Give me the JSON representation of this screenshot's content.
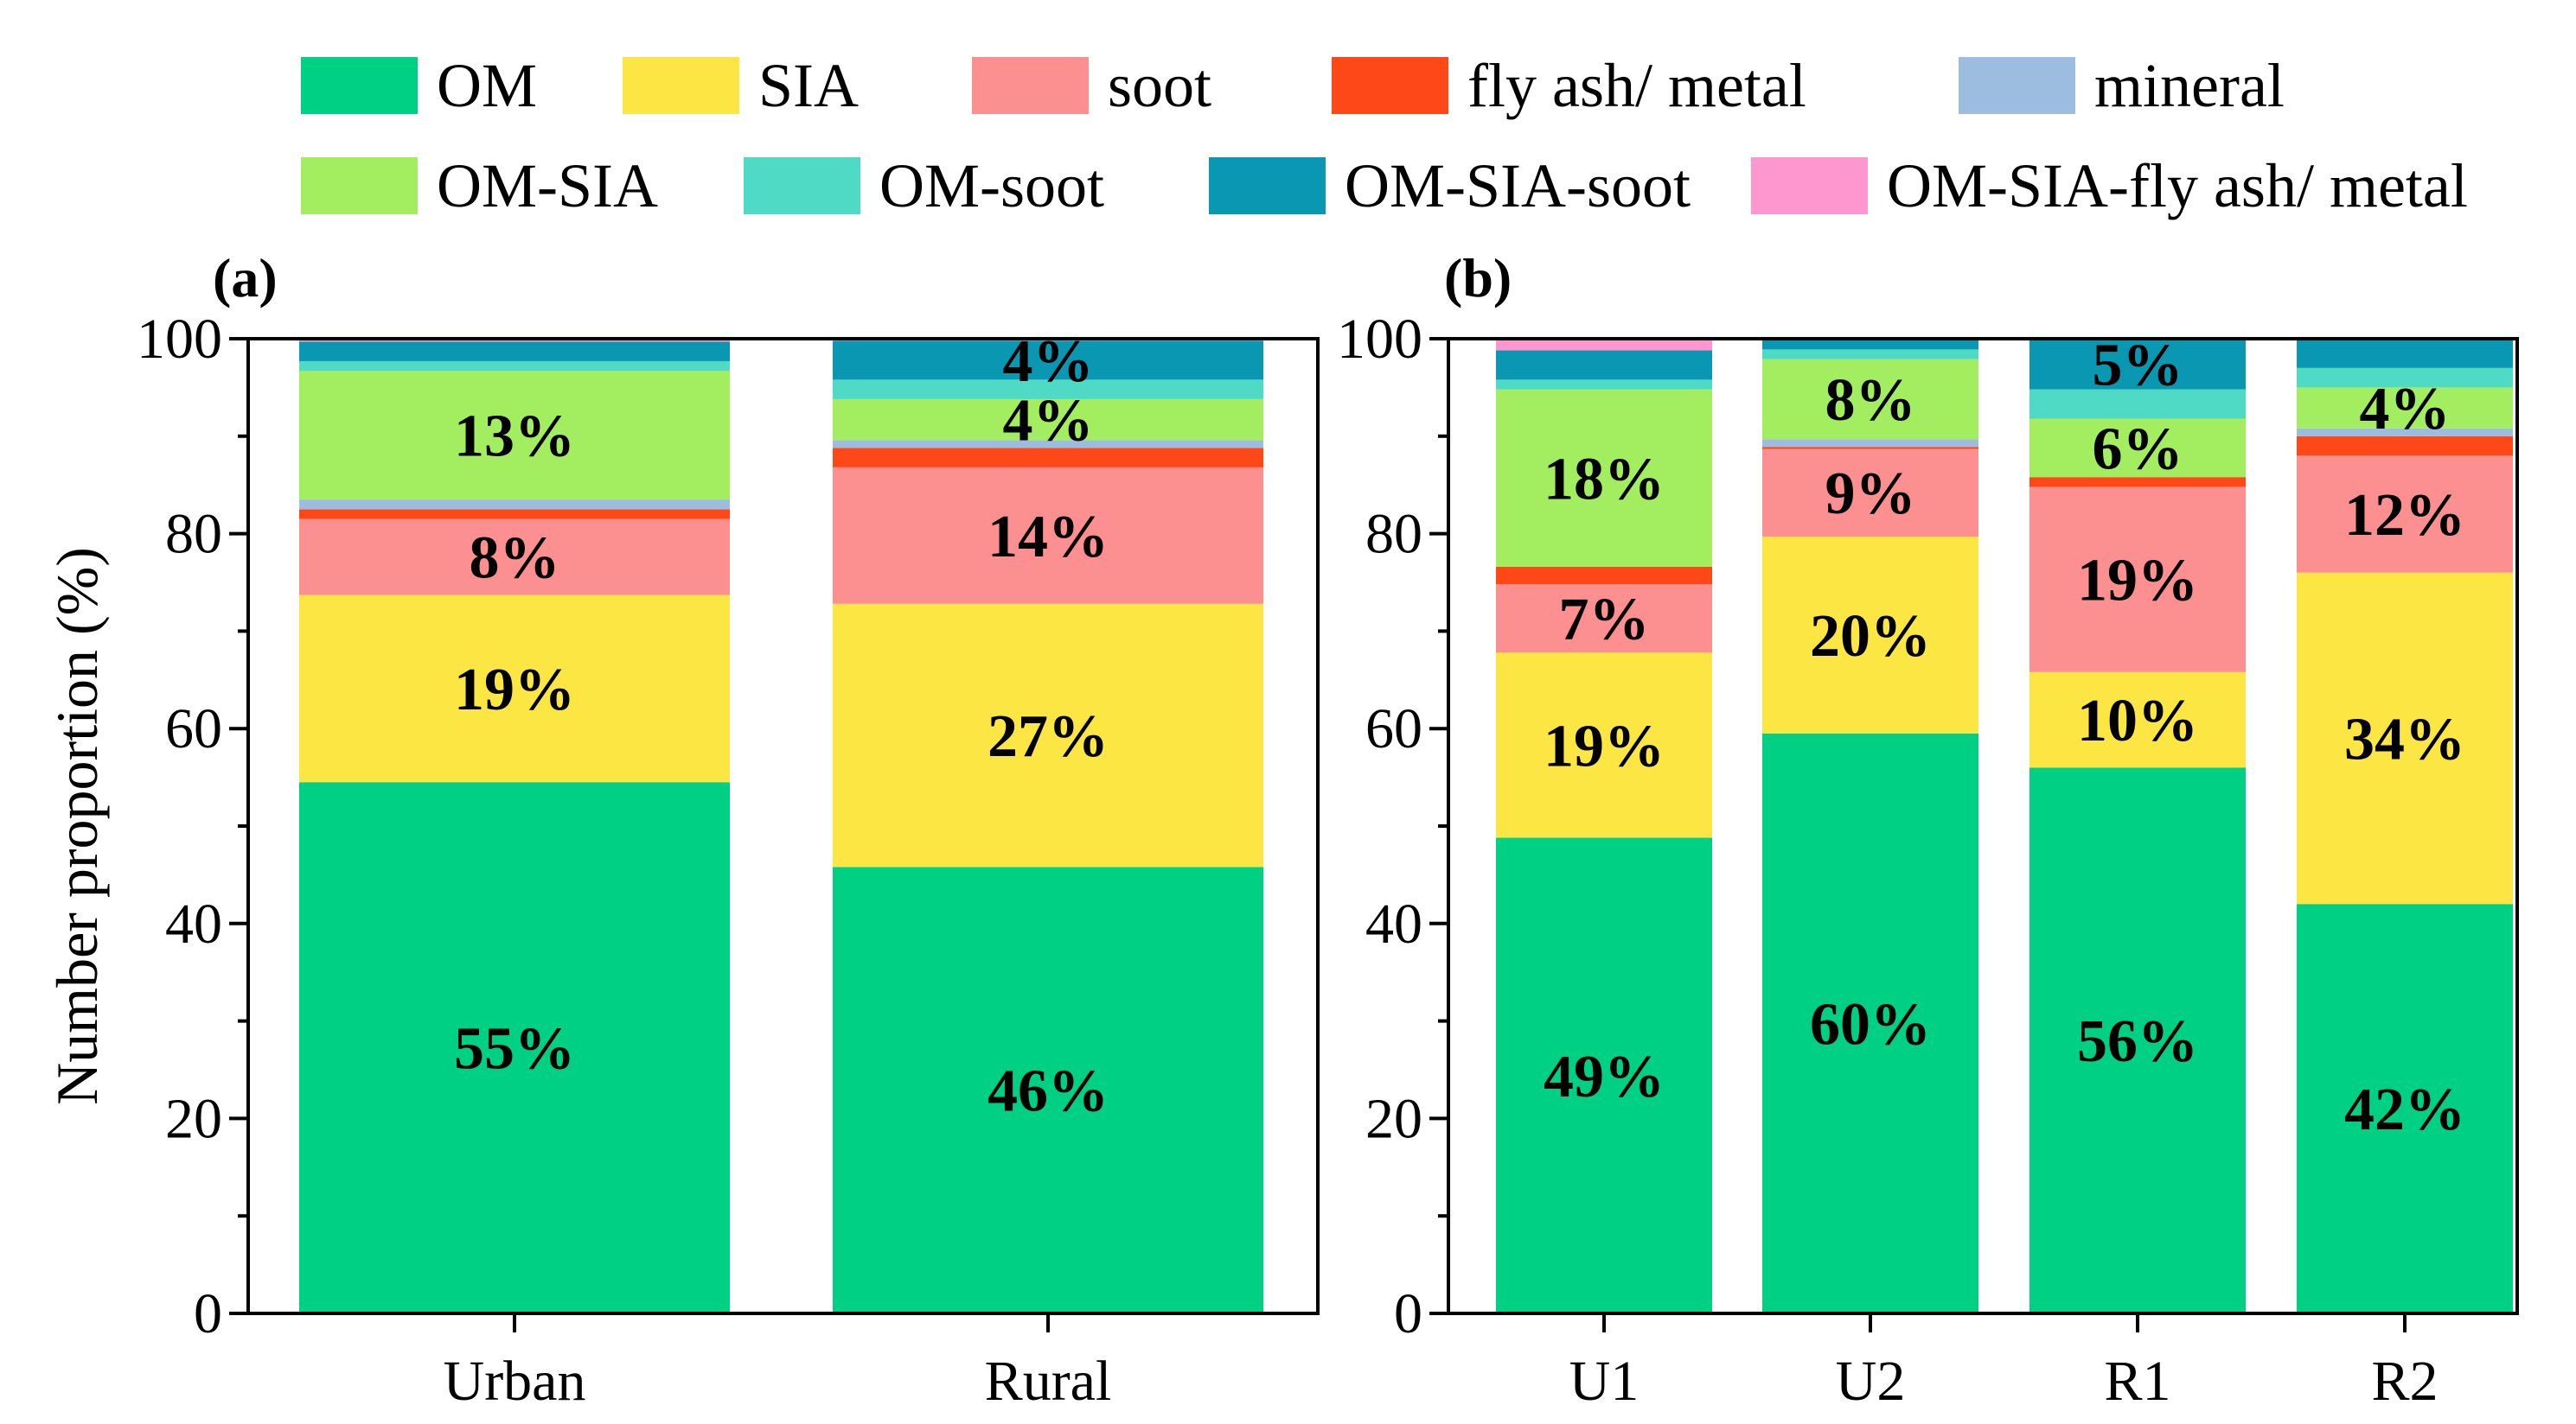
{
  "legend": [
    {
      "name": "OM",
      "color": "#00d084"
    },
    {
      "name": "SIA",
      "color": "#fce643"
    },
    {
      "name": "soot",
      "color": "#fc8f8f"
    },
    {
      "name": "fly ash/ metal",
      "color": "#fe4818"
    },
    {
      "name": "mineral",
      "color": "#9cbde0"
    },
    {
      "name": "OM-SIA",
      "color": "#a3ed60"
    },
    {
      "name": "OM-soot",
      "color": "#4fdac5"
    },
    {
      "name": "OM-SIA-soot",
      "color": "#0a97b2"
    },
    {
      "name": "OM-SIA-fly ash/ metal",
      "color": "#fe97d0"
    }
  ],
  "chart_data": [
    {
      "type": "bar",
      "stacked": true,
      "panel_label": "(a)",
      "ylabel": "Number proportion (%)",
      "ylim": [
        0,
        100
      ],
      "yticks": [
        0,
        20,
        40,
        60,
        80,
        100
      ],
      "categories": [
        "Urban",
        "Rural"
      ],
      "series": [
        {
          "name": "OM",
          "values": [
            54.5,
            45.8
          ]
        },
        {
          "name": "SIA",
          "values": [
            19.2,
            27.0
          ]
        },
        {
          "name": "soot",
          "values": [
            7.8,
            14.0
          ]
        },
        {
          "name": "fly ash/ metal",
          "values": [
            1.0,
            2.0
          ]
        },
        {
          "name": "mineral",
          "values": [
            1.0,
            0.8
          ]
        },
        {
          "name": "OM-SIA",
          "values": [
            13.2,
            4.2
          ]
        },
        {
          "name": "OM-soot",
          "values": [
            1.0,
            2.0
          ]
        },
        {
          "name": "OM-SIA-soot",
          "values": [
            2.0,
            4.0
          ]
        },
        {
          "name": "OM-SIA-fly ash/ metal",
          "values": [
            0.3,
            0.2
          ]
        }
      ],
      "data_labels": [
        [
          "55%",
          "19%",
          "8%",
          "",
          "",
          "13%",
          "",
          "",
          ""
        ],
        [
          "46%",
          "27%",
          "14%",
          "",
          "",
          "4%",
          "",
          "4%",
          ""
        ]
      ]
    },
    {
      "type": "bar",
      "stacked": true,
      "panel_label": "(b)",
      "ylabel": "",
      "ylim": [
        0,
        100
      ],
      "yticks": [
        0,
        20,
        40,
        60,
        80,
        100
      ],
      "categories": [
        "U1",
        "U2",
        "R1",
        "R2"
      ],
      "series": [
        {
          "name": "OM",
          "values": [
            48.8,
            59.5,
            56.0,
            42.0
          ]
        },
        {
          "name": "SIA",
          "values": [
            19.0,
            20.2,
            9.8,
            34.0
          ]
        },
        {
          "name": "soot",
          "values": [
            7.0,
            9.0,
            19.0,
            12.0
          ]
        },
        {
          "name": "fly ash/ metal",
          "values": [
            1.8,
            0.2,
            1.0,
            2.0
          ]
        },
        {
          "name": "mineral",
          "values": [
            0.0,
            0.8,
            0.0,
            0.8
          ]
        },
        {
          "name": "OM-SIA",
          "values": [
            18.2,
            8.2,
            6.0,
            4.2
          ]
        },
        {
          "name": "OM-soot",
          "values": [
            1.0,
            1.0,
            3.0,
            2.0
          ]
        },
        {
          "name": "OM-SIA-soot",
          "values": [
            3.0,
            1.1,
            5.2,
            3.0
          ]
        },
        {
          "name": "OM-SIA-fly ash/ metal",
          "values": [
            1.2,
            0.0,
            0.0,
            0.0
          ]
        }
      ],
      "data_labels": [
        [
          "49%",
          "19%",
          "7%",
          "",
          "",
          "18%",
          "",
          "",
          ""
        ],
        [
          "60%",
          "20%",
          "9%",
          "",
          "",
          "8%",
          "",
          "",
          ""
        ],
        [
          "56%",
          "10%",
          "19%",
          "",
          "",
          "6%",
          "",
          "5%",
          ""
        ],
        [
          "42%",
          "34%",
          "12%",
          "",
          "",
          "4%",
          "",
          "",
          ""
        ]
      ]
    }
  ]
}
